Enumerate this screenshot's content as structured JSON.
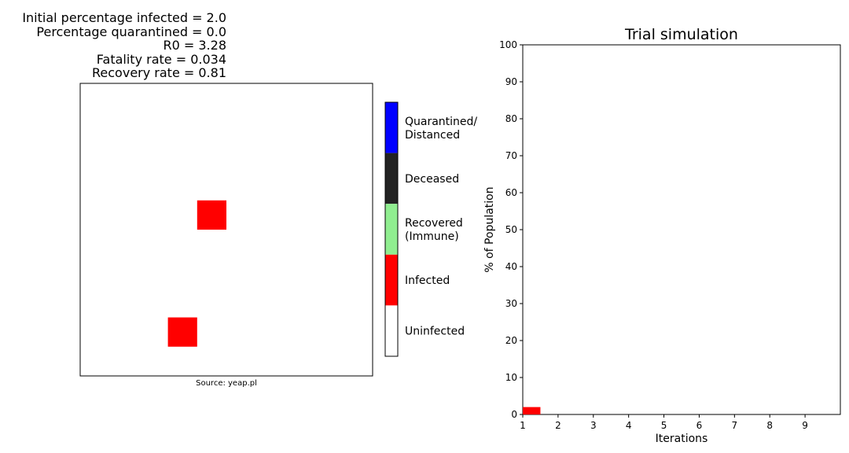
{
  "parameters": {
    "lines": [
      "Initial percentage infected = 2.0",
      "Percentage quarantined = 0.0",
      "R0 = 3.28",
      "Fatality rate = 0.034",
      "Recovery rate = 0.81"
    ]
  },
  "grid": {
    "caption": "Source: yeap.pl",
    "size": 10,
    "infected_cells": [
      {
        "col": 4,
        "row": 4
      },
      {
        "col": 3,
        "row": 8
      }
    ]
  },
  "colorbar": {
    "entries": [
      {
        "label_lines": [
          "Quarantined/",
          " Distanced"
        ],
        "color": "#0000ff"
      },
      {
        "label_lines": [
          "Deceased"
        ],
        "color": "#222222"
      },
      {
        "label_lines": [
          "Recovered",
          "(Immune)"
        ],
        "color": "#90ee90"
      },
      {
        "label_lines": [
          "Infected"
        ],
        "color": "#ff0000"
      },
      {
        "label_lines": [
          "Uninfected"
        ],
        "color": "#ffffff"
      }
    ]
  },
  "chart_data": {
    "type": "bar",
    "title": "Trial simulation",
    "xlabel": "Iterations",
    "ylabel": "% of Population",
    "xlim": [
      1,
      10
    ],
    "ylim": [
      0,
      100
    ],
    "xticks": [
      1,
      2,
      3,
      4,
      5,
      6,
      7,
      8,
      9
    ],
    "yticks": [
      0,
      10,
      20,
      30,
      40,
      50,
      60,
      70,
      80,
      90,
      100
    ],
    "series": [
      {
        "color": "#ff0000",
        "points": [
          {
            "x": 1,
            "y": 2.0
          }
        ]
      }
    ],
    "grid": false
  }
}
